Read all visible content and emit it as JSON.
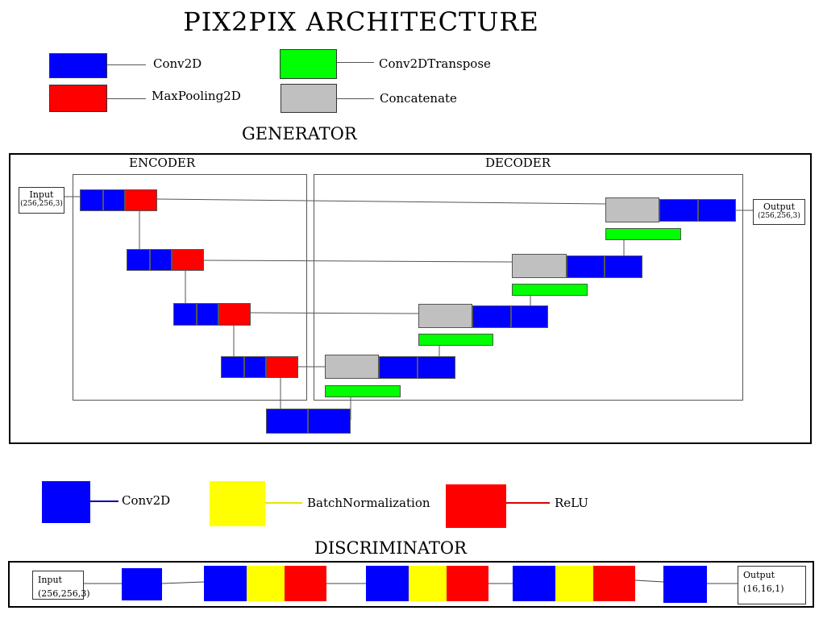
{
  "title": "PIX2PIX  ARCHITECTURE",
  "colors": {
    "conv2d": "#0000ff",
    "maxpooling2d": "#ff0000",
    "conv2dtranspose": "#00ff00",
    "concatenate": "#c0c0c0",
    "batchnormalization": "#ffff00",
    "relu": "#ff0000"
  },
  "legend_top": {
    "conv2d": "Conv2D",
    "maxpooling2d": "MaxPooling2D",
    "conv2dtranspose": "Conv2DTranspose",
    "concatenate": "Concatenate"
  },
  "generator": {
    "heading": "GENERATOR",
    "encoder_label": "ENCODER",
    "decoder_label": "DECODER",
    "input_label": "Input",
    "input_shape": "(256,256,3)",
    "output_label": "Output",
    "output_shape": "(256,256,3)"
  },
  "legend_bottom": {
    "conv2d": "Conv2D",
    "batchnormalization": "BatchNormalization",
    "relu": "ReLU"
  },
  "discriminator": {
    "heading": "DISCRIMINATOR",
    "input_label": "Input",
    "input_shape": "(256,256,3)",
    "output_label": "Output",
    "output_shape": "(16,16,1)"
  }
}
